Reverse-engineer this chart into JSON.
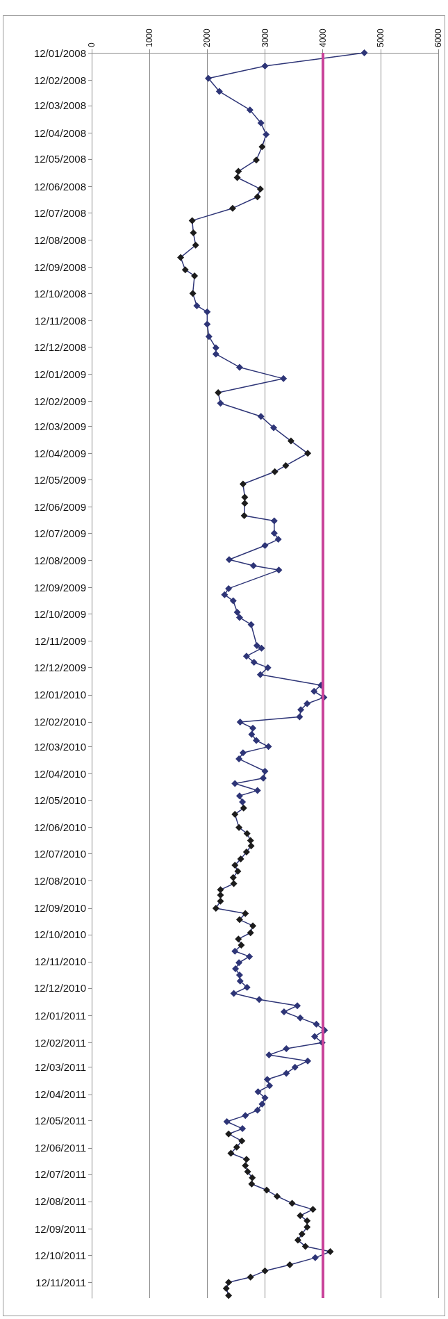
{
  "chart_data": {
    "type": "line",
    "orientation": "horizontal",
    "marker": "diamond",
    "line_style": "solid",
    "grid": "x",
    "xlim": [
      0,
      6000
    ],
    "ylim": [
      "2011-11-30",
      "2008-01-12"
    ],
    "xticks": [
      0,
      1000,
      2000,
      3000,
      4000,
      5000,
      6000
    ],
    "yticks": [
      {
        "value": "2008-01-12",
        "label": "12/01/2008"
      },
      {
        "value": "2008-02-12",
        "label": "12/02/2008"
      },
      {
        "value": "2008-03-12",
        "label": "12/03/2008"
      },
      {
        "value": "2008-04-12",
        "label": "12/04/2008"
      },
      {
        "value": "2008-05-12",
        "label": "12/05/2008"
      },
      {
        "value": "2008-06-12",
        "label": "12/06/2008"
      },
      {
        "value": "2008-07-12",
        "label": "12/07/2008"
      },
      {
        "value": "2008-08-12",
        "label": "12/08/2008"
      },
      {
        "value": "2008-09-12",
        "label": "12/09/2008"
      },
      {
        "value": "2008-10-12",
        "label": "12/10/2008"
      },
      {
        "value": "2008-11-12",
        "label": "12/11/2008"
      },
      {
        "value": "2008-12-12",
        "label": "12/12/2008"
      },
      {
        "value": "2009-01-12",
        "label": "12/01/2009"
      },
      {
        "value": "2009-02-12",
        "label": "12/02/2009"
      },
      {
        "value": "2009-03-12",
        "label": "12/03/2009"
      },
      {
        "value": "2009-04-12",
        "label": "12/04/2009"
      },
      {
        "value": "2009-05-12",
        "label": "12/05/2009"
      },
      {
        "value": "2009-06-12",
        "label": "12/06/2009"
      },
      {
        "value": "2009-07-12",
        "label": "12/07/2009"
      },
      {
        "value": "2009-08-12",
        "label": "12/08/2009"
      },
      {
        "value": "2009-09-12",
        "label": "12/09/2009"
      },
      {
        "value": "2009-10-12",
        "label": "12/10/2009"
      },
      {
        "value": "2009-11-12",
        "label": "12/11/2009"
      },
      {
        "value": "2009-12-12",
        "label": "12/12/2009"
      },
      {
        "value": "2010-01-12",
        "label": "12/01/2010"
      },
      {
        "value": "2010-02-12",
        "label": "12/02/2010"
      },
      {
        "value": "2010-03-12",
        "label": "12/03/2010"
      },
      {
        "value": "2010-04-12",
        "label": "12/04/2010"
      },
      {
        "value": "2010-05-12",
        "label": "12/05/2010"
      },
      {
        "value": "2010-06-12",
        "label": "12/06/2010"
      },
      {
        "value": "2010-07-12",
        "label": "12/07/2010"
      },
      {
        "value": "2010-08-12",
        "label": "12/08/2010"
      },
      {
        "value": "2010-09-12",
        "label": "12/09/2010"
      },
      {
        "value": "2010-10-12",
        "label": "12/10/2010"
      },
      {
        "value": "2010-11-12",
        "label": "12/11/2010"
      },
      {
        "value": "2010-12-12",
        "label": "12/12/2010"
      },
      {
        "value": "2011-01-12",
        "label": "12/01/2011"
      },
      {
        "value": "2011-02-12",
        "label": "12/02/2011"
      },
      {
        "value": "2011-03-12",
        "label": "12/03/2011"
      },
      {
        "value": "2011-04-12",
        "label": "12/04/2011"
      },
      {
        "value": "2011-05-12",
        "label": "12/05/2011"
      },
      {
        "value": "2011-06-12",
        "label": "12/06/2011"
      },
      {
        "value": "2011-07-12",
        "label": "12/07/2011"
      },
      {
        "value": "2011-08-12",
        "label": "12/08/2011"
      },
      {
        "value": "2011-09-12",
        "label": "12/09/2011"
      },
      {
        "value": "2011-10-12",
        "label": "12/10/2011"
      },
      {
        "value": "2011-11-12",
        "label": "12/11/2011"
      }
    ],
    "ref_lines": [
      {
        "axis": "x",
        "value": 4000,
        "color": "#c9449a"
      }
    ],
    "x": [
      "2008-01-12",
      "2008-01-27",
      "2008-02-10",
      "2008-02-25",
      "2008-03-17",
      "2008-04-01",
      "2008-04-14",
      "2008-04-28",
      "2008-05-13",
      "2008-05-26",
      "2008-06-02",
      "2008-06-15",
      "2008-06-24",
      "2008-07-07",
      "2008-07-21",
      "2008-08-04",
      "2008-08-18",
      "2008-09-01",
      "2008-09-15",
      "2008-09-22",
      "2008-10-12",
      "2008-10-26",
      "2008-11-02",
      "2008-11-16",
      "2008-11-30",
      "2008-12-13",
      "2008-12-20",
      "2009-01-04",
      "2009-01-17",
      "2009-02-02",
      "2009-02-14",
      "2009-03-01",
      "2009-03-14",
      "2009-03-29",
      "2009-04-12",
      "2009-04-26",
      "2009-05-03",
      "2009-05-17",
      "2009-06-01",
      "2009-06-08",
      "2009-06-22",
      "2009-06-28",
      "2009-07-12",
      "2009-07-19",
      "2009-07-26",
      "2009-08-11",
      "2009-08-18",
      "2009-08-23",
      "2009-09-13",
      "2009-09-20",
      "2009-09-27",
      "2009-10-10",
      "2009-10-16",
      "2009-10-24",
      "2009-11-17",
      "2009-11-20",
      "2009-11-29",
      "2009-12-06",
      "2009-12-12",
      "2009-12-20",
      "2010-01-01",
      "2010-01-08",
      "2010-01-15",
      "2010-01-22",
      "2010-01-29",
      "2010-02-06",
      "2010-02-12",
      "2010-02-19",
      "2010-02-26",
      "2010-03-05",
      "2010-03-12",
      "2010-03-19",
      "2010-03-26",
      "2010-04-09",
      "2010-04-17",
      "2010-04-23",
      "2010-05-01",
      "2010-05-07",
      "2010-05-14",
      "2010-05-21",
      "2010-05-28",
      "2010-06-12",
      "2010-06-19",
      "2010-06-27",
      "2010-07-03",
      "2010-07-10",
      "2010-07-18",
      "2010-07-25",
      "2010-08-01",
      "2010-08-08",
      "2010-08-15",
      "2010-08-22",
      "2010-08-28",
      "2010-09-04",
      "2010-09-12",
      "2010-09-18",
      "2010-09-25",
      "2010-10-02",
      "2010-10-10",
      "2010-10-17",
      "2010-10-24",
      "2010-10-31",
      "2010-11-06",
      "2010-11-13",
      "2010-11-20",
      "2010-11-27",
      "2010-12-04",
      "2010-12-11",
      "2010-12-18",
      "2010-12-25",
      "2011-01-01",
      "2011-01-08",
      "2011-01-15",
      "2011-01-22",
      "2011-01-29",
      "2011-02-05",
      "2011-02-12",
      "2011-02-19",
      "2011-02-26",
      "2011-03-05",
      "2011-03-12",
      "2011-03-19",
      "2011-03-26",
      "2011-04-02",
      "2011-04-09",
      "2011-04-16",
      "2011-04-23",
      "2011-04-30",
      "2011-05-06",
      "2011-05-13",
      "2011-05-21",
      "2011-05-27",
      "2011-06-04",
      "2011-06-11",
      "2011-06-18",
      "2011-06-25",
      "2011-07-02",
      "2011-07-09",
      "2011-07-16",
      "2011-07-23",
      "2011-07-30",
      "2011-08-06",
      "2011-08-14",
      "2011-08-21",
      "2011-08-28",
      "2011-09-03",
      "2011-09-10",
      "2011-09-18",
      "2011-09-25",
      "2011-10-02",
      "2011-10-08",
      "2011-10-15",
      "2011-10-23",
      "2011-10-30",
      "2011-11-06",
      "2011-11-12",
      "2011-11-19",
      "2011-11-27"
    ],
    "series": [
      {
        "color": "#2e3577",
        "values": [
          4720,
          3000,
          2020,
          2210,
          2740,
          2930,
          3020,
          2950,
          2850,
          2540,
          2520,
          2920,
          2870,
          2440,
          1740,
          1760,
          1800,
          1540,
          1620,
          1780,
          1750,
          1820,
          2000,
          2000,
          2030,
          2150,
          2150,
          2560,
          3320,
          2190,
          2230,
          2930,
          3150,
          3450,
          3740,
          3360,
          3170,
          2620,
          2650,
          2650,
          2640,
          3160,
          3160,
          3230,
          3000,
          2380,
          2800,
          3240,
          2370,
          2300,
          2450,
          2520,
          2560,
          2760,
          2860,
          2940,
          2680,
          2810,
          3050,
          2920,
          3970,
          3850,
          4020,
          3730,
          3620,
          3600,
          2570,
          2790,
          2770,
          2850,
          3060,
          2620,
          2550,
          3000,
          2970,
          2480,
          2870,
          2560,
          2610,
          2630,
          2480,
          2550,
          2690,
          2750,
          2760,
          2680,
          2580,
          2480,
          2530,
          2450,
          2460,
          2230,
          2230,
          2230,
          2150,
          2660,
          2560,
          2790,
          2750,
          2540,
          2590,
          2480,
          2730,
          2550,
          2490,
          2560,
          2570,
          2690,
          2460,
          2900,
          3560,
          3330,
          3610,
          3890,
          4030,
          3860,
          3990,
          3370,
          3070,
          3740,
          3520,
          3370,
          3040,
          3080,
          2880,
          3000,
          2950,
          2870,
          2660,
          2340,
          2610,
          2370,
          2600,
          2510,
          2410,
          2680,
          2660,
          2700,
          2780,
          2770,
          3030,
          3210,
          3470,
          3830,
          3610,
          3730,
          3730,
          3640,
          3570,
          3700,
          4130,
          3870,
          3430,
          3000,
          2750,
          2370,
          2330,
          2370
        ],
        "colors": [
          "#2e3577",
          "#2e3577",
          "#2e3577",
          "#2e3577",
          "#2e3577",
          "#2e3577",
          "#2e3577",
          "#1c1c1c",
          "#1c1c1c",
          "#1c1c1c",
          "#1c1c1c",
          "#1c1c1c",
          "#1c1c1c",
          "#1c1c1c",
          "#1c1c1c",
          "#1c1c1c",
          "#1c1c1c",
          "#1c1c1c",
          "#1c1c1c",
          "#1c1c1c",
          "#1c1c1c",
          "#2e3577",
          "#2e3577",
          "#2e3577",
          "#2e3577",
          "#2e3577",
          "#2e3577",
          "#2e3577",
          "#2e3577",
          "#1c1c1c",
          "#2e3577",
          "#2e3577",
          "#2e3577",
          "#1c1c1c",
          "#1c1c1c",
          "#1c1c1c",
          "#1c1c1c",
          "#1c1c1c",
          "#1c1c1c",
          "#1c1c1c",
          "#1c1c1c",
          "#2e3577",
          "#2e3577",
          "#2e3577",
          "#2e3577",
          "#2e3577",
          "#2e3577",
          "#2e3577",
          "#2e3577",
          "#2e3577",
          "#2e3577",
          "#2e3577",
          "#2e3577",
          "#2e3577",
          "#2e3577",
          "#2e3577",
          "#2e3577",
          "#2e3577",
          "#2e3577",
          "#2e3577",
          "#2e3577",
          "#2e3577",
          "#2e3577",
          "#2e3577",
          "#2e3577",
          "#2e3577",
          "#2e3577",
          "#2e3577",
          "#2e3577",
          "#2e3577",
          "#2e3577",
          "#2e3577",
          "#2e3577",
          "#2e3577",
          "#2e3577",
          "#2e3577",
          "#2e3577",
          "#2e3577",
          "#2e3577",
          "#1c1c1c",
          "#1c1c1c",
          "#1c1c1c",
          "#1c1c1c",
          "#1c1c1c",
          "#1c1c1c",
          "#1c1c1c",
          "#1c1c1c",
          "#1c1c1c",
          "#1c1c1c",
          "#1c1c1c",
          "#1c1c1c",
          "#1c1c1c",
          "#1c1c1c",
          "#1c1c1c",
          "#1c1c1c",
          "#1c1c1c",
          "#1c1c1c",
          "#1c1c1c",
          "#1c1c1c",
          "#1c1c1c",
          "#1c1c1c",
          "#2e3577",
          "#2e3577",
          "#2e3577",
          "#2e3577",
          "#2e3577",
          "#2e3577",
          "#2e3577",
          "#2e3577",
          "#2e3577",
          "#2e3577",
          "#2e3577",
          "#2e3577",
          "#2e3577",
          "#2e3577",
          "#2e3577",
          "#2e3577",
          "#2e3577",
          "#2e3577",
          "#2e3577",
          "#2e3577",
          "#2e3577",
          "#2e3577",
          "#2e3577",
          "#2e3577",
          "#2e3577",
          "#2e3577",
          "#2e3577",
          "#2e3577",
          "#2e3577",
          "#2e3577",
          "#1c1c1c",
          "#1c1c1c",
          "#1c1c1c",
          "#1c1c1c",
          "#1c1c1c",
          "#1c1c1c",
          "#1c1c1c",
          "#1c1c1c",
          "#1c1c1c",
          "#1c1c1c",
          "#1c1c1c",
          "#1c1c1c",
          "#1c1c1c",
          "#1c1c1c",
          "#1c1c1c",
          "#1c1c1c",
          "#1c1c1c",
          "#1c1c1c",
          "#1c1c1c",
          "#1c1c1c",
          "#2e3577",
          "#1c1c1c",
          "#1c1c1c",
          "#1c1c1c",
          "#1c1c1c",
          "#1c1c1c",
          "#1c1c1c"
        ]
      }
    ]
  }
}
